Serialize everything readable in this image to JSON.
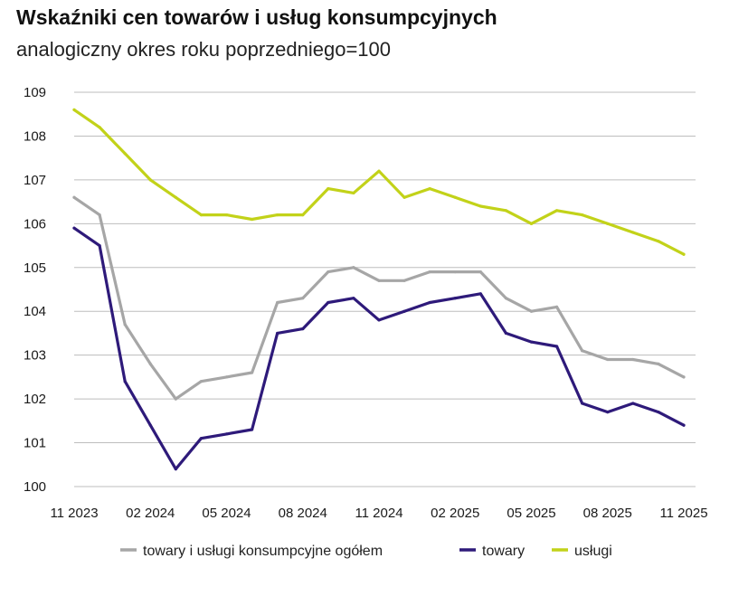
{
  "chart_data": {
    "type": "line",
    "title": "Wskaźniki cen towarów i usług konsumpcyjnych",
    "subtitle": "analogiczny okres roku poprzedniego=100",
    "xlabel": "",
    "ylabel": "",
    "x": [
      "11 2023",
      "12 2023",
      "01 2024",
      "02 2024",
      "03 2024",
      "04 2024",
      "05 2024",
      "06 2024",
      "07 2024",
      "08 2024",
      "09 2024",
      "10 2024",
      "11 2024",
      "12 2024",
      "01 2025",
      "02 2025",
      "03 2025",
      "04 2025",
      "05 2025",
      "06 2025",
      "07 2025",
      "08 2025",
      "09 2025",
      "10 2025",
      "11 2025"
    ],
    "x_tick_labels": [
      "11 2023",
      "02 2024",
      "05 2024",
      "08 2024",
      "11 2024",
      "02 2025",
      "05 2025",
      "08 2025",
      "11 2025"
    ],
    "x_tick_indices": [
      0,
      3,
      6,
      9,
      12,
      15,
      18,
      21,
      24
    ],
    "y_ticks": [
      100,
      101,
      102,
      103,
      104,
      105,
      106,
      107,
      108,
      109
    ],
    "ylim": [
      100,
      109
    ],
    "grid": "horizontal",
    "legend_position": "bottom",
    "series": [
      {
        "name": "towary i usługi konsumpcyjne ogółem",
        "color": "#a6a6a6",
        "values": [
          106.6,
          106.2,
          103.7,
          102.8,
          102.0,
          102.4,
          102.5,
          102.6,
          104.2,
          104.3,
          104.9,
          105.0,
          104.7,
          104.7,
          104.9,
          104.9,
          104.9,
          104.3,
          104.0,
          104.1,
          103.1,
          102.9,
          102.9,
          102.8,
          102.5
        ]
      },
      {
        "name": "towary",
        "color": "#2e1a7a",
        "values": [
          105.9,
          105.5,
          102.4,
          101.4,
          100.4,
          101.1,
          101.2,
          101.3,
          103.5,
          103.6,
          104.2,
          104.3,
          103.8,
          104.0,
          104.2,
          104.3,
          104.4,
          103.5,
          103.3,
          103.2,
          101.9,
          101.7,
          101.9,
          101.7,
          101.4
        ]
      },
      {
        "name": "usługi",
        "color": "#c2d219",
        "values": [
          108.6,
          108.2,
          107.6,
          107.0,
          106.6,
          106.2,
          106.2,
          106.1,
          106.2,
          106.2,
          106.8,
          106.7,
          107.2,
          106.6,
          106.8,
          106.6,
          106.4,
          106.3,
          106.0,
          106.3,
          106.2,
          106.0,
          105.8,
          105.6,
          105.3
        ]
      }
    ]
  }
}
